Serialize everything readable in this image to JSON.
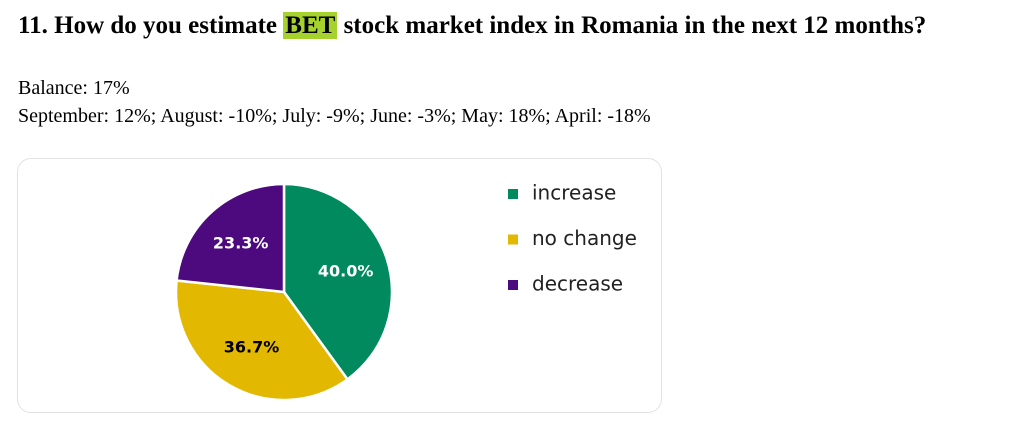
{
  "document": {
    "title_before": "11. How do you estimate ",
    "title_highlight": "BET",
    "title_after": " stock market index in Romania in the next 12 months?",
    "balance": "Balance: 17%",
    "history": "September: 12%; August: -10%; July: -9%; June: -3%; May: 18%; April: -18%"
  },
  "chart_data": {
    "type": "pie",
    "categories": [
      "increase",
      "no change",
      "decrease"
    ],
    "values": [
      40.0,
      36.7,
      23.3
    ],
    "value_labels": [
      "40.0%",
      "36.7%",
      "23.3%"
    ],
    "colors": [
      "#008a5e",
      "#e2b800",
      "#4d0a7e"
    ],
    "legend": "right"
  }
}
